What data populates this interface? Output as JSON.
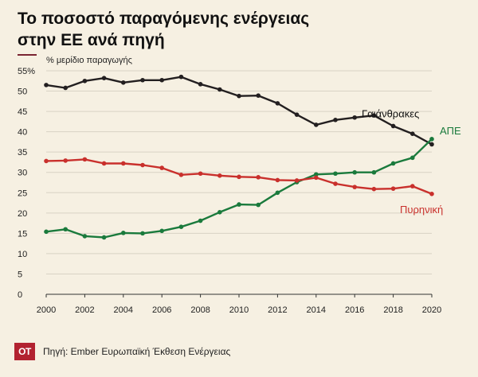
{
  "header": {
    "title_line1": "Το ποσοστό παραγόμενης ενέργειας",
    "title_line2": "στην ΕΕ ανά πηγή"
  },
  "footer": {
    "logo": "ΟΤ",
    "source": "Πηγή: Ember Ευρωπαϊκή Έκθεση Ενέργειας"
  },
  "chart_data": {
    "type": "line",
    "ylabel": "% μερίδιο παραγωγής",
    "ylim": [
      0,
      55
    ],
    "xlim": [
      2000,
      2020
    ],
    "y_ticks": [
      0,
      5,
      10,
      15,
      20,
      25,
      30,
      35,
      40,
      45,
      50,
      55
    ],
    "y_tick_labels": [
      "0",
      "5",
      "10",
      "15",
      "20",
      "25",
      "30",
      "35",
      "40",
      "45",
      "50",
      "55%"
    ],
    "x_ticks": [
      2000,
      2002,
      2004,
      2006,
      2008,
      2010,
      2012,
      2014,
      2016,
      2018,
      2020
    ],
    "grid": "horizontal",
    "x": [
      2000,
      2001,
      2002,
      2003,
      2004,
      2005,
      2006,
      2007,
      2008,
      2009,
      2010,
      2011,
      2012,
      2013,
      2014,
      2015,
      2016,
      2017,
      2018,
      2019,
      2020
    ],
    "series": [
      {
        "name": "Γαιάνθρακες",
        "color": "#231f20",
        "values": [
          51.5,
          50.8,
          52.5,
          53.2,
          52.1,
          52.7,
          52.7,
          53.5,
          51.7,
          50.4,
          48.8,
          48.9,
          47.0,
          44.2,
          41.7,
          42.9,
          43.5,
          44.0,
          41.4,
          39.5,
          36.9
        ]
      },
      {
        "name": "ΑΠΕ",
        "color": "#1a7a3c",
        "values": [
          15.4,
          16.0,
          14.3,
          14.0,
          15.1,
          15.0,
          15.6,
          16.6,
          18.1,
          20.2,
          22.1,
          22.0,
          25.0,
          27.6,
          29.5,
          29.7,
          30.0,
          30.0,
          32.2,
          33.6,
          38.2
        ]
      },
      {
        "name": "Πυρηνική",
        "color": "#c9302c",
        "values": [
          32.8,
          32.9,
          33.2,
          32.2,
          32.2,
          31.8,
          31.1,
          29.4,
          29.7,
          29.2,
          28.9,
          28.8,
          28.1,
          28.0,
          28.7,
          27.2,
          26.4,
          25.9,
          26.0,
          26.6,
          24.7
        ]
      }
    ]
  }
}
